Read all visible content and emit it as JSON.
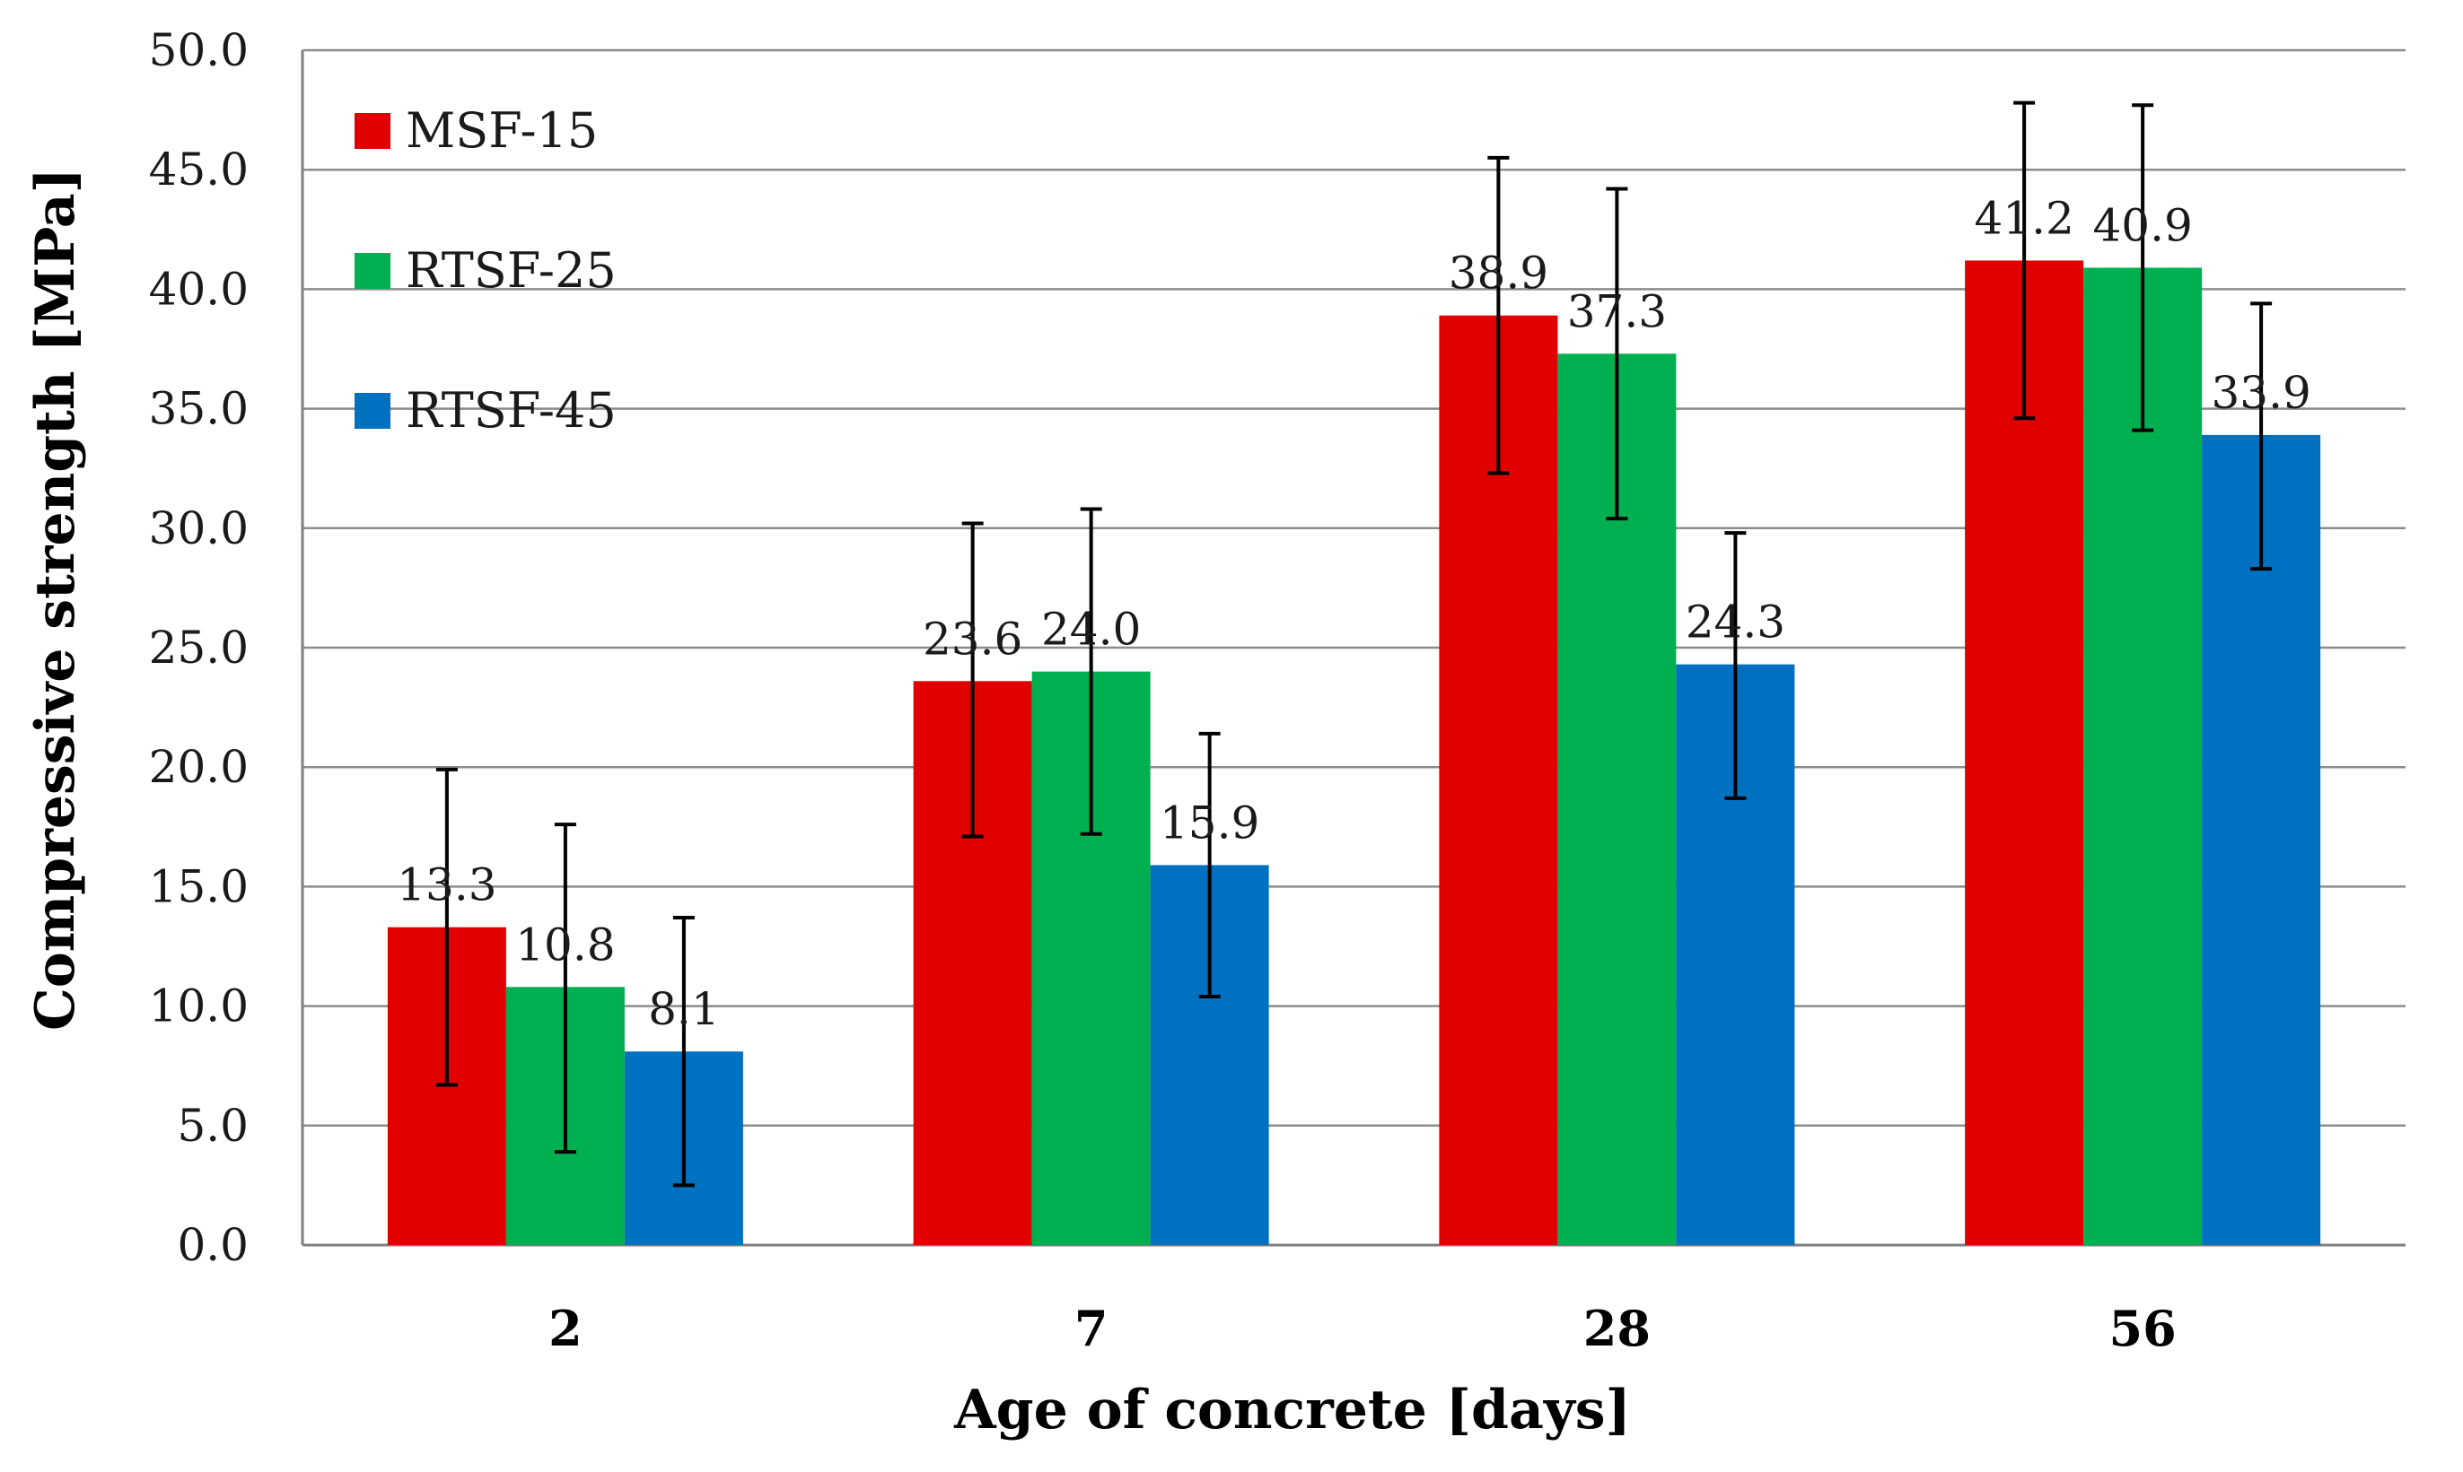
{
  "chart_data": {
    "type": "bar",
    "xlabel": "Age of concrete [days]",
    "ylabel": "Compressive strength [MPa]",
    "categories": [
      "2",
      "7",
      "28",
      "56"
    ],
    "ylim": [
      0,
      50
    ],
    "yticks": [
      "0.0",
      "5.0",
      "10.0",
      "15.0",
      "20.0",
      "25.0",
      "30.0",
      "35.0",
      "40.0",
      "45.0",
      "50.0"
    ],
    "grid": true,
    "legend_position": "top-left",
    "series": [
      {
        "name": "MSF-15",
        "color": "#e00000",
        "values": [
          13.3,
          23.6,
          38.9,
          41.2
        ],
        "labels": [
          "13.3",
          "23.6",
          "38.9",
          "41.2"
        ],
        "error_low": [
          6.7,
          17.1,
          32.3,
          34.6
        ],
        "error_high": [
          19.9,
          30.2,
          45.5,
          47.8
        ]
      },
      {
        "name": "RTSF-25",
        "color": "#00b050",
        "values": [
          10.8,
          24.0,
          37.3,
          40.9
        ],
        "labels": [
          "10.8",
          "24.0",
          "37.3",
          "40.9"
        ],
        "error_low": [
          3.9,
          17.2,
          30.4,
          34.1
        ],
        "error_high": [
          17.6,
          30.8,
          44.2,
          47.7
        ]
      },
      {
        "name": "RTSF-45",
        "color": "#0070c0",
        "values": [
          8.1,
          15.9,
          24.3,
          33.9
        ],
        "labels": [
          "8.1",
          "15.9",
          "24.3",
          "33.9"
        ],
        "error_low": [
          2.5,
          10.4,
          18.7,
          28.3
        ],
        "error_high": [
          13.7,
          21.4,
          29.8,
          39.4
        ]
      }
    ]
  }
}
